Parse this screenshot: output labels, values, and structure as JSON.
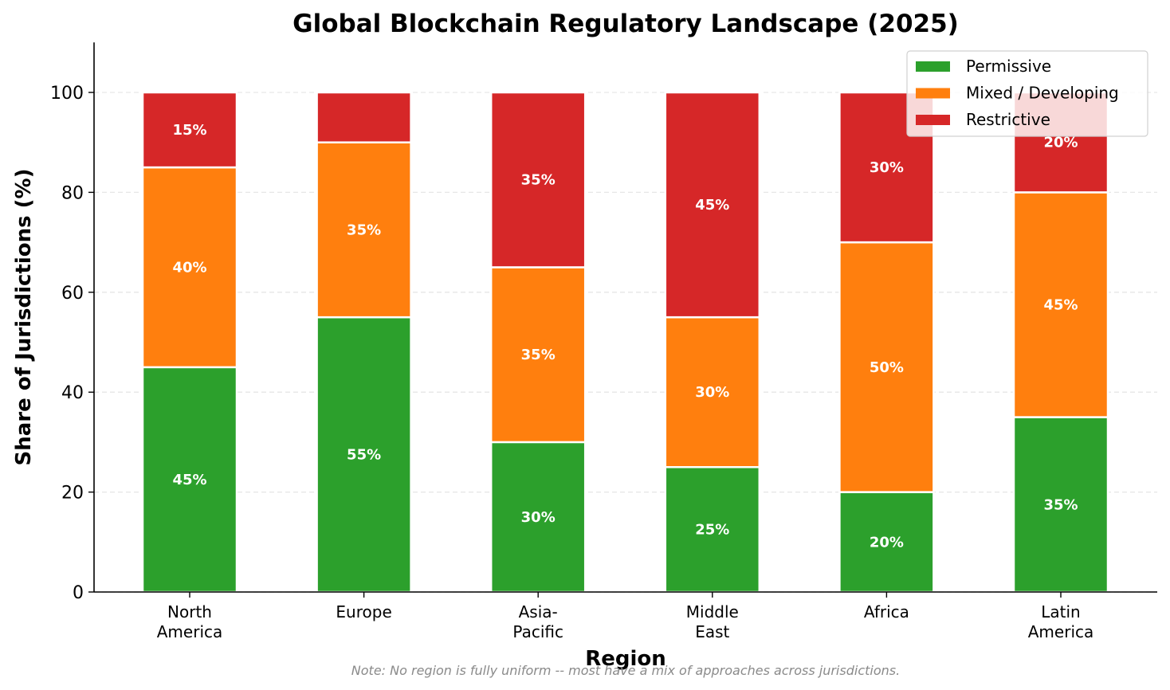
{
  "chart_data": {
    "type": "bar",
    "stacked": true,
    "title": "Global Blockchain Regulatory Landscape (2025)",
    "xlabel": "Region",
    "ylabel": "Share of Jurisdictions (%)",
    "ylim": [
      0,
      110
    ],
    "yticks": [
      0,
      20,
      40,
      60,
      80,
      100
    ],
    "grid": "y-dashed",
    "categories": [
      "North\nAmerica",
      "Europe",
      "Asia-\nPacific",
      "Middle\nEast",
      "Africa",
      "Latin\nAmerica"
    ],
    "series": [
      {
        "name": "Permissive",
        "color": "#2ca02c",
        "values": [
          45,
          55,
          30,
          25,
          20,
          35
        ],
        "labels": [
          "45%",
          "55%",
          "30%",
          "25%",
          "20%",
          "35%"
        ]
      },
      {
        "name": "Mixed / Developing",
        "color": "#ff7f0e",
        "values": [
          40,
          35,
          35,
          30,
          50,
          45
        ],
        "labels": [
          "40%",
          "35%",
          "35%",
          "30%",
          "50%",
          "45%"
        ]
      },
      {
        "name": "Restrictive",
        "color": "#d62728",
        "values": [
          15,
          10,
          35,
          45,
          30,
          20
        ],
        "labels": [
          "15%",
          "",
          "35%",
          "45%",
          "30%",
          "20%"
        ]
      }
    ],
    "legend": {
      "position": "top-right",
      "entries": [
        "Permissive",
        "Mixed / Developing",
        "Restrictive"
      ]
    },
    "annotation": "Note: No region is fully uniform -- most have a mix of approaches across jurisdictions."
  }
}
